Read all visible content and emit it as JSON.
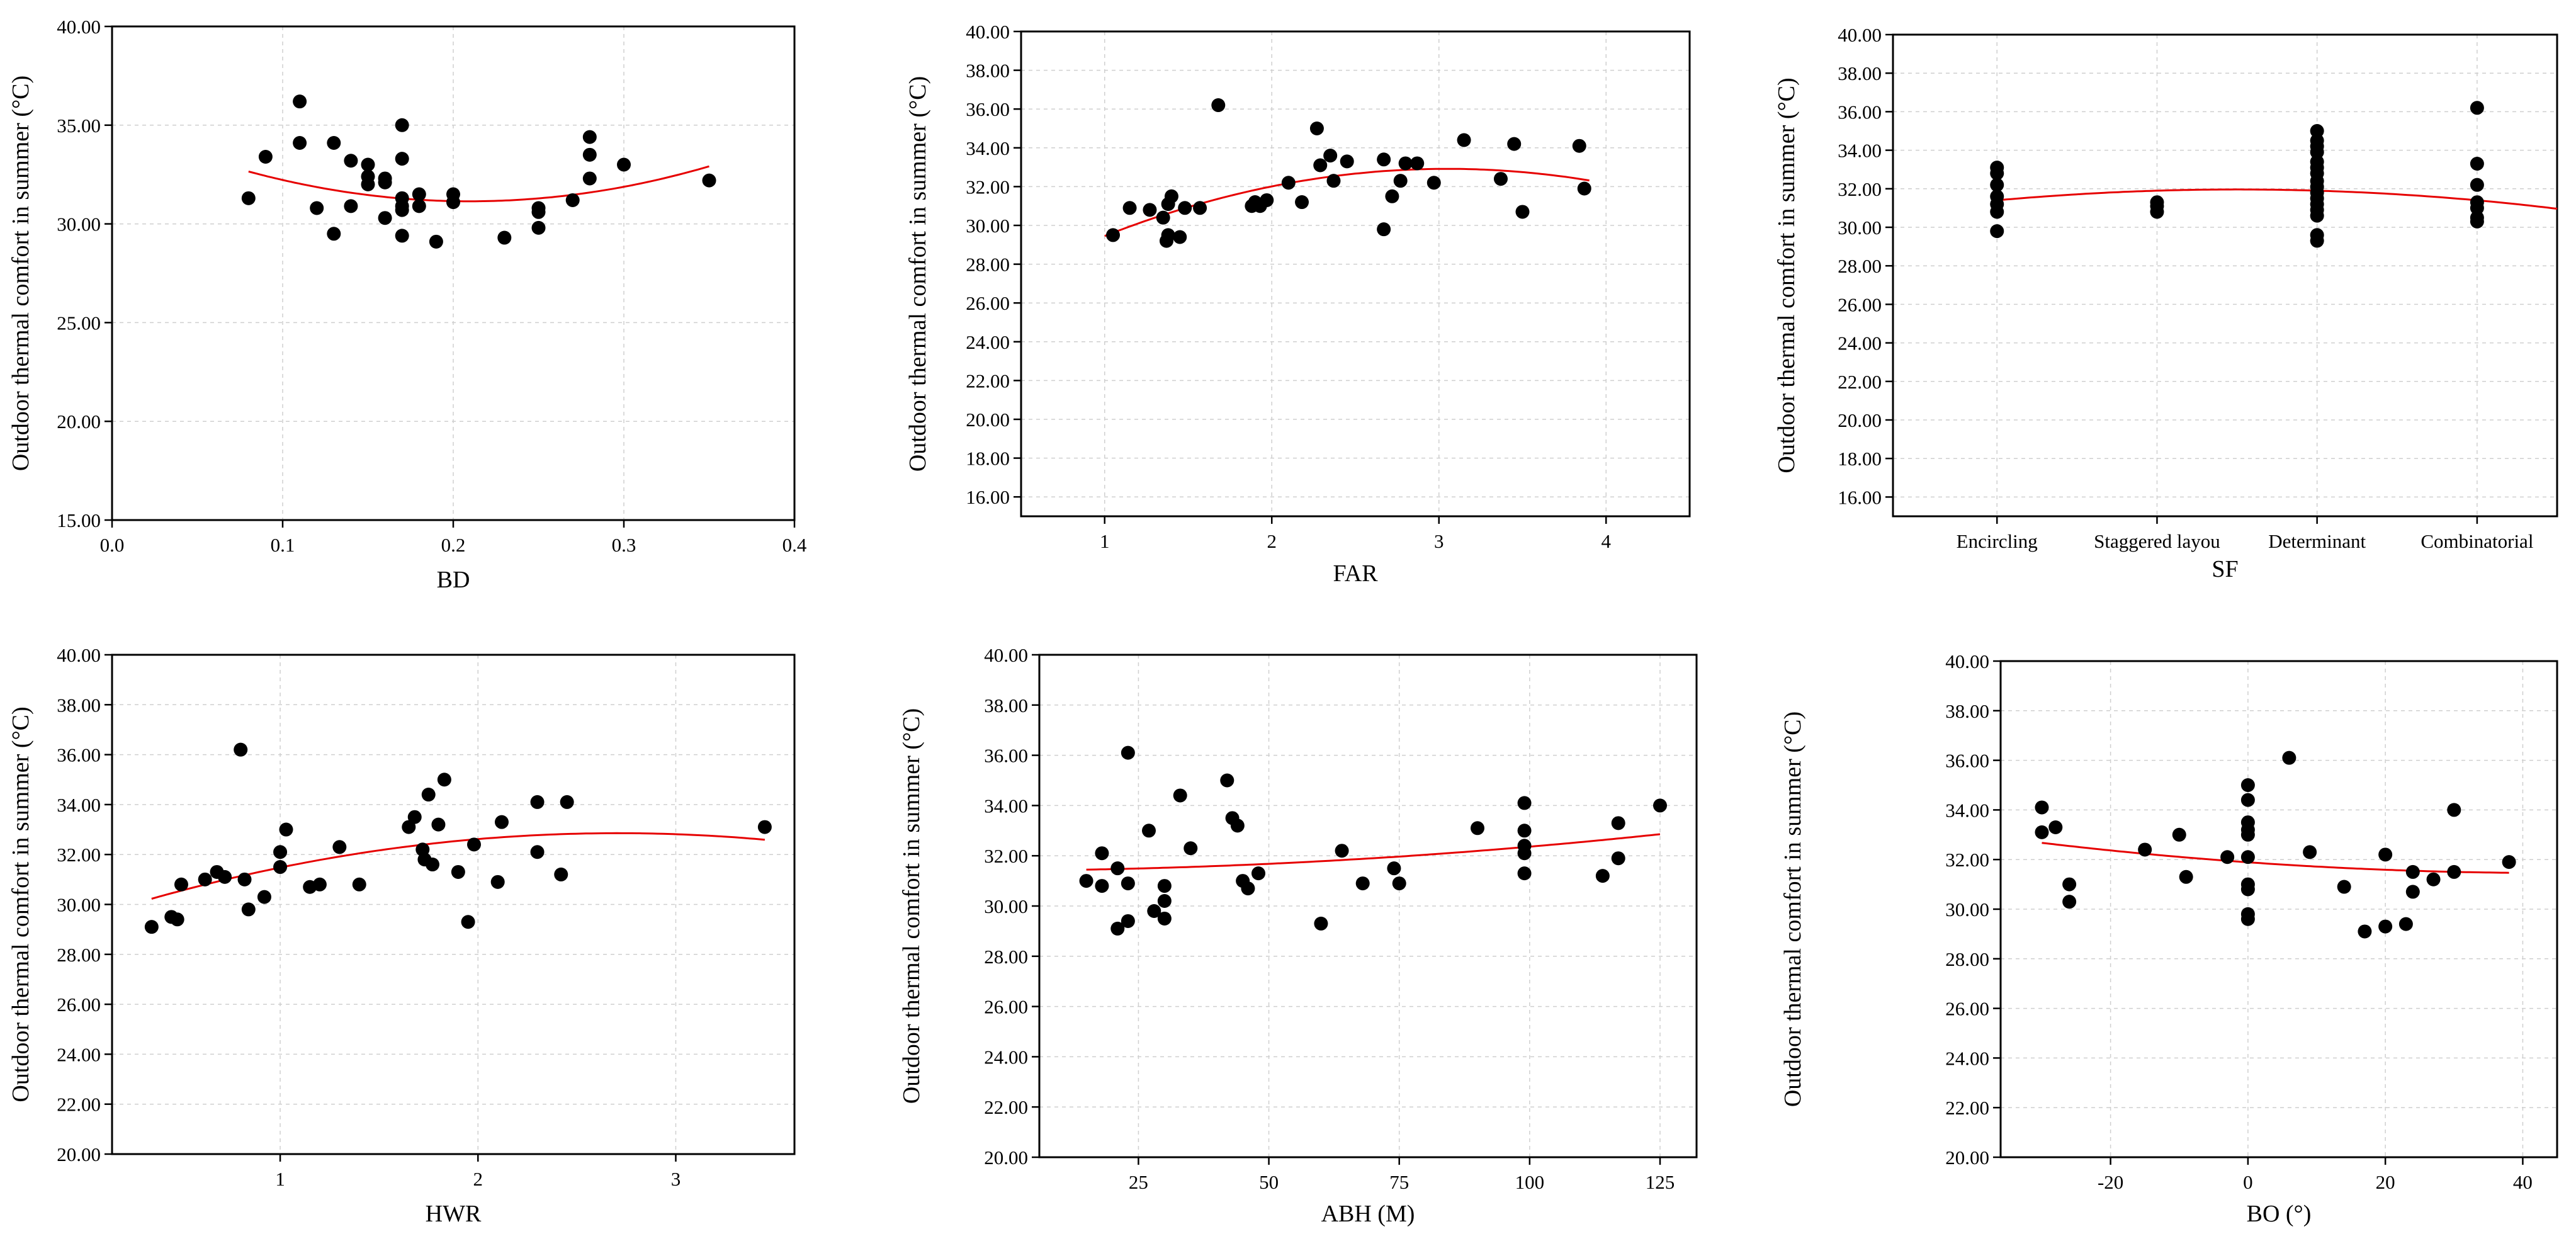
{
  "chart_data": [
    {
      "type": "scatter",
      "xlabel": "BD",
      "ylabel": "Outdoor thermal comfort in summer (°C)",
      "xlim": [
        0,
        0.4
      ],
      "ylim": [
        15,
        40
      ],
      "xticks": [
        0,
        0.1,
        0.2,
        0.3,
        0.4
      ],
      "xtick_labels": [
        "0.0",
        "0.1",
        "0.2",
        "0.3",
        "0.4"
      ],
      "yticks": [
        15,
        20,
        25,
        30,
        35,
        40
      ],
      "ytick_labels": [
        "15.00",
        "20.00",
        "25.00",
        "30.00",
        "35.00",
        "40.00"
      ],
      "grid": true,
      "points": [
        [
          0.08,
          31.3
        ],
        [
          0.09,
          33.4
        ],
        [
          0.11,
          36.2
        ],
        [
          0.11,
          34.1
        ],
        [
          0.12,
          30.8
        ],
        [
          0.13,
          34.1
        ],
        [
          0.13,
          29.5
        ],
        [
          0.14,
          33.2
        ],
        [
          0.14,
          30.9
        ],
        [
          0.15,
          33.0
        ],
        [
          0.15,
          32.4
        ],
        [
          0.15,
          32.0
        ],
        [
          0.16,
          32.3
        ],
        [
          0.16,
          32.1
        ],
        [
          0.16,
          30.3
        ],
        [
          0.17,
          35.0
        ],
        [
          0.17,
          33.3
        ],
        [
          0.17,
          31.3
        ],
        [
          0.17,
          30.9
        ],
        [
          0.17,
          30.7
        ],
        [
          0.17,
          29.4
        ],
        [
          0.18,
          31.5
        ],
        [
          0.18,
          30.9
        ],
        [
          0.19,
          29.1
        ],
        [
          0.2,
          31.5
        ],
        [
          0.2,
          31.1
        ],
        [
          0.23,
          29.3
        ],
        [
          0.25,
          30.8
        ],
        [
          0.25,
          30.6
        ],
        [
          0.25,
          29.8
        ],
        [
          0.27,
          31.2
        ],
        [
          0.28,
          34.4
        ],
        [
          0.28,
          33.5
        ],
        [
          0.28,
          32.3
        ],
        [
          0.3,
          33.0
        ],
        [
          0.35,
          32.2
        ]
      ],
      "fit": {
        "type": "quadratic",
        "x_range": [
          0.08,
          0.35
        ],
        "coefficients": [
          89.82,
          -37.65,
          35.09
        ]
      }
    },
    {
      "type": "scatter",
      "xlabel": "FAR",
      "ylabel": "Outdoor thermal comfort in summer (°C)",
      "xlim": [
        0.5,
        4.5
      ],
      "ylim": [
        15,
        40
      ],
      "xticks": [
        1,
        2,
        3,
        4
      ],
      "xtick_labels": [
        "1",
        "2",
        "3",
        "4"
      ],
      "yticks": [
        16,
        18,
        20,
        22,
        24,
        26,
        28,
        30,
        32,
        34,
        36,
        38,
        40
      ],
      "ytick_labels": [
        "16.00",
        "18.00",
        "20.00",
        "22.00",
        "24.00",
        "26.00",
        "28.00",
        "30.00",
        "32.00",
        "34.00",
        "36.00",
        "38.00",
        "40.00"
      ],
      "grid": true,
      "points": [
        [
          1.05,
          29.5
        ],
        [
          1.15,
          30.9
        ],
        [
          1.27,
          30.8
        ],
        [
          1.35,
          30.4
        ],
        [
          1.37,
          29.2
        ],
        [
          1.38,
          29.5
        ],
        [
          1.38,
          31.1
        ],
        [
          1.4,
          31.5
        ],
        [
          1.45,
          29.4
        ],
        [
          1.48,
          30.9
        ],
        [
          1.57,
          30.9
        ],
        [
          1.68,
          36.2
        ],
        [
          1.88,
          31.0
        ],
        [
          1.9,
          31.2
        ],
        [
          1.93,
          31.0
        ],
        [
          1.97,
          31.3
        ],
        [
          2.1,
          32.2
        ],
        [
          2.18,
          31.2
        ],
        [
          2.27,
          35.0
        ],
        [
          2.29,
          33.1
        ],
        [
          2.35,
          33.6
        ],
        [
          2.37,
          32.3
        ],
        [
          2.45,
          33.3
        ],
        [
          2.67,
          29.8
        ],
        [
          2.67,
          33.4
        ],
        [
          2.72,
          31.5
        ],
        [
          2.77,
          32.3
        ],
        [
          2.8,
          33.2
        ],
        [
          2.87,
          33.2
        ],
        [
          2.97,
          32.2
        ],
        [
          3.15,
          34.4
        ],
        [
          3.37,
          32.4
        ],
        [
          3.45,
          34.2
        ],
        [
          3.5,
          30.7
        ],
        [
          3.84,
          34.1
        ],
        [
          3.87,
          31.9
        ]
      ],
      "fit": {
        "type": "quadratic",
        "x_range": [
          1.0,
          3.9
        ],
        "coefficients": [
          -0.825,
          5.03,
          25.25
        ]
      }
    },
    {
      "type": "scatter",
      "xlabel": "SF",
      "ylabel": "Outdoor thermal comfort in summer (°C)",
      "ylim": [
        15,
        40
      ],
      "categories": [
        "Encircling",
        "Staggered layou",
        "Determinant",
        "Combinatorial"
      ],
      "yticks": [
        16,
        18,
        20,
        22,
        24,
        26,
        28,
        30,
        32,
        34,
        36,
        38,
        40
      ],
      "ytick_labels": [
        "16.00",
        "18.00",
        "20.00",
        "22.00",
        "24.00",
        "26.00",
        "28.00",
        "30.00",
        "32.00",
        "34.00",
        "36.00",
        "38.00",
        "40.00"
      ],
      "grid": true,
      "points": [
        [
          1,
          33.1
        ],
        [
          1,
          32.8
        ],
        [
          1,
          32.2
        ],
        [
          1,
          31.6
        ],
        [
          1,
          31.2
        ],
        [
          1,
          30.8
        ],
        [
          1,
          29.8
        ],
        [
          2,
          31.3
        ],
        [
          2,
          31.1
        ],
        [
          2,
          30.8
        ],
        [
          3,
          35.0
        ],
        [
          3,
          34.5
        ],
        [
          3,
          34.2
        ],
        [
          3,
          33.9
        ],
        [
          3,
          33.4
        ],
        [
          3,
          33.1
        ],
        [
          3,
          32.8
        ],
        [
          3,
          32.4
        ],
        [
          3,
          32.1
        ],
        [
          3,
          31.8
        ],
        [
          3,
          31.5
        ],
        [
          3,
          31.2
        ],
        [
          3,
          30.9
        ],
        [
          3,
          30.6
        ],
        [
          3,
          29.6
        ],
        [
          3,
          29.3
        ],
        [
          4,
          36.2
        ],
        [
          4,
          33.3
        ],
        [
          4,
          32.2
        ],
        [
          4,
          31.3
        ],
        [
          4,
          31.0
        ],
        [
          4,
          30.5
        ],
        [
          4,
          30.3
        ]
      ],
      "fit": {
        "type": "quadratic",
        "x_range": [
          1,
          4.5
        ],
        "coefficients": [
          -0.25,
          1.25,
          30.4
        ]
      }
    },
    {
      "type": "scatter",
      "xlabel": "HWR",
      "ylabel": "Outdoor thermal comfort in summer (°C)",
      "xlim": [
        0.15,
        3.6
      ],
      "ylim": [
        20,
        40
      ],
      "xticks": [
        1,
        2,
        3
      ],
      "xtick_labels": [
        "1",
        "2",
        "3"
      ],
      "yticks": [
        20,
        22,
        24,
        26,
        28,
        30,
        32,
        34,
        36,
        38,
        40
      ],
      "ytick_labels": [
        "20.00",
        "22.00",
        "24.00",
        "26.00",
        "28.00",
        "30.00",
        "32.00",
        "34.00",
        "36.00",
        "38.00",
        "40.00"
      ],
      "grid": true,
      "points": [
        [
          0.35,
          29.1
        ],
        [
          0.45,
          29.5
        ],
        [
          0.48,
          29.4
        ],
        [
          0.5,
          30.8
        ],
        [
          0.62,
          31.0
        ],
        [
          0.68,
          31.3
        ],
        [
          0.72,
          31.1
        ],
        [
          0.8,
          36.2
        ],
        [
          0.82,
          31.0
        ],
        [
          0.84,
          29.8
        ],
        [
          0.92,
          30.3
        ],
        [
          1.0,
          32.1
        ],
        [
          1.0,
          31.5
        ],
        [
          1.03,
          33.0
        ],
        [
          1.15,
          30.7
        ],
        [
          1.2,
          30.8
        ],
        [
          1.3,
          32.3
        ],
        [
          1.4,
          30.8
        ],
        [
          1.65,
          33.1
        ],
        [
          1.68,
          33.5
        ],
        [
          1.72,
          32.2
        ],
        [
          1.73,
          31.8
        ],
        [
          1.75,
          34.4
        ],
        [
          1.77,
          31.6
        ],
        [
          1.8,
          33.2
        ],
        [
          1.83,
          35.0
        ],
        [
          1.9,
          31.3
        ],
        [
          1.95,
          29.3
        ],
        [
          1.98,
          32.4
        ],
        [
          2.1,
          30.9
        ],
        [
          2.12,
          33.3
        ],
        [
          2.3,
          34.1
        ],
        [
          2.3,
          32.1
        ],
        [
          2.42,
          31.2
        ],
        [
          2.45,
          34.1
        ],
        [
          3.45,
          33.1
        ]
      ],
      "fit": {
        "type": "quadratic",
        "x_range": [
          0.35,
          3.45
        ],
        "coefficients": [
          -0.473,
          2.56,
          29.39
        ]
      }
    },
    {
      "type": "scatter",
      "xlabel": "ABH (M)",
      "ylabel": "Outdoor thermal comfort in summer (°C)",
      "xlim": [
        6,
        132
      ],
      "ylim": [
        20,
        40
      ],
      "xticks": [
        25,
        50,
        75,
        100,
        125
      ],
      "xtick_labels": [
        "25",
        "50",
        "75",
        "100",
        "125"
      ],
      "yticks": [
        20,
        22,
        24,
        26,
        28,
        30,
        32,
        34,
        36,
        38,
        40
      ],
      "ytick_labels": [
        "20.00",
        "22.00",
        "24.00",
        "26.00",
        "28.00",
        "30.00",
        "32.00",
        "34.00",
        "36.00",
        "38.00",
        "40.00"
      ],
      "grid": true,
      "points": [
        [
          15,
          31.0
        ],
        [
          18,
          32.1
        ],
        [
          18,
          30.8
        ],
        [
          21,
          29.1
        ],
        [
          21,
          31.5
        ],
        [
          23,
          30.9
        ],
        [
          23,
          29.4
        ],
        [
          23,
          36.1
        ],
        [
          27,
          33.0
        ],
        [
          28,
          29.8
        ],
        [
          30,
          30.2
        ],
        [
          30,
          30.8
        ],
        [
          30,
          29.5
        ],
        [
          33,
          34.4
        ],
        [
          35,
          32.3
        ],
        [
          42,
          35.0
        ],
        [
          43,
          33.5
        ],
        [
          44,
          33.2
        ],
        [
          45,
          31.0
        ],
        [
          46,
          30.7
        ],
        [
          48,
          31.3
        ],
        [
          60,
          29.3
        ],
        [
          64,
          32.2
        ],
        [
          68,
          30.9
        ],
        [
          74,
          31.5
        ],
        [
          75,
          30.9
        ],
        [
          90,
          33.1
        ],
        [
          99,
          34.1
        ],
        [
          99,
          33.0
        ],
        [
          99,
          32.4
        ],
        [
          99,
          32.1
        ],
        [
          99,
          31.3
        ],
        [
          114,
          31.2
        ],
        [
          117,
          33.3
        ],
        [
          117,
          31.9
        ],
        [
          125,
          34.0
        ]
      ],
      "fit": {
        "type": "quadratic",
        "x_range": [
          15,
          125
        ],
        "coefficients": [
          8.26e-05,
          0.00126,
          31.41
        ]
      }
    },
    {
      "type": "scatter",
      "xlabel": "BO (°)",
      "ylabel": "Outdoor thermal comfort in summer (°C)",
      "xlim": [
        -36,
        45
      ],
      "ylim": [
        20,
        40
      ],
      "xticks": [
        -20,
        0,
        20,
        40
      ],
      "xtick_labels": [
        "-20",
        "0",
        "20",
        "40"
      ],
      "yticks": [
        20,
        22,
        24,
        26,
        28,
        30,
        32,
        34,
        36,
        38,
        40
      ],
      "ytick_labels": [
        "20.00",
        "22.00",
        "24.00",
        "26.00",
        "28.00",
        "30.00",
        "32.00",
        "34.00",
        "36.00",
        "38.00",
        "40.00"
      ],
      "grid": true,
      "points": [
        [
          -30,
          34.1
        ],
        [
          -30,
          33.1
        ],
        [
          -28,
          33.3
        ],
        [
          -26,
          31.0
        ],
        [
          -26,
          30.3
        ],
        [
          -15,
          32.4
        ],
        [
          -10,
          33.0
        ],
        [
          -9,
          31.3
        ],
        [
          -3,
          32.1
        ],
        [
          0,
          35.0
        ],
        [
          0,
          34.4
        ],
        [
          0,
          33.5
        ],
        [
          0,
          33.2
        ],
        [
          0,
          33.0
        ],
        [
          0,
          32.1
        ],
        [
          0,
          31.0
        ],
        [
          0,
          30.8
        ],
        [
          0,
          29.8
        ],
        [
          0,
          29.6
        ],
        [
          6,
          36.1
        ],
        [
          9,
          32.3
        ],
        [
          14,
          30.9
        ],
        [
          17,
          29.1
        ],
        [
          20,
          32.2
        ],
        [
          20,
          29.3
        ],
        [
          23,
          29.4
        ],
        [
          24,
          31.5
        ],
        [
          24,
          30.7
        ],
        [
          27,
          31.2
        ],
        [
          30,
          34.0
        ],
        [
          30,
          31.5
        ],
        [
          38,
          31.9
        ]
      ],
      "fit": {
        "type": "quadratic",
        "x_range": [
          -30,
          38
        ],
        "coefficients": [
          0.00022,
          -0.0195,
          31.89
        ]
      }
    }
  ]
}
